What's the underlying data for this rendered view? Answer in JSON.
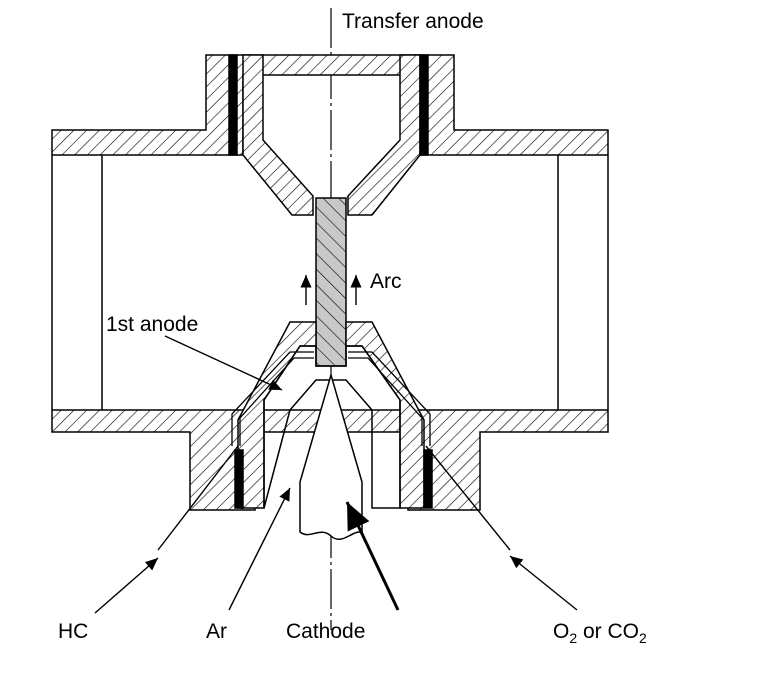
{
  "labels": {
    "transfer_anode": "Transfer anode",
    "arc": "Arc",
    "first_anode": "1st anode",
    "hc": "HC",
    "ar": "Ar",
    "cathode": "Cathode",
    "o2_or_co2": {
      "o": "O",
      "o_sub": "2",
      "middle": " or CO",
      "co_sub": "2"
    }
  },
  "colors": {
    "line": "#000000",
    "arc_fill": "#c8c8c8",
    "background": "#ffffff"
  }
}
